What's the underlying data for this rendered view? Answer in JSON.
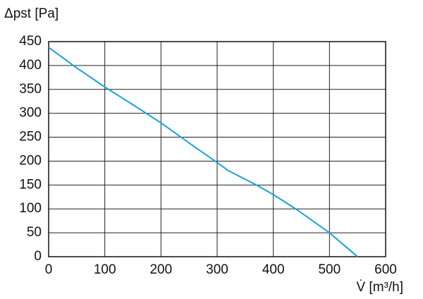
{
  "chart_data": {
    "type": "line",
    "y_label": "Δpst [Pa]",
    "x_label": "V̇ [m³/h]",
    "x": [
      0,
      50,
      100,
      150,
      200,
      250,
      300,
      320,
      370,
      400,
      440,
      500,
      530,
      550
    ],
    "series": [
      {
        "name": "Δpst",
        "color": "#1ba1d8",
        "values": [
          438,
          395,
          355,
          318,
          280,
          238,
          197,
          180,
          150,
          130,
          100,
          50,
          20,
          0
        ]
      }
    ],
    "xlim": [
      0,
      600
    ],
    "xticks": [
      0,
      100,
      200,
      300,
      400,
      500,
      600
    ],
    "ylim": [
      0,
      450
    ],
    "yticks": [
      0,
      50,
      100,
      150,
      200,
      250,
      300,
      350,
      400,
      450
    ],
    "grid": true
  }
}
